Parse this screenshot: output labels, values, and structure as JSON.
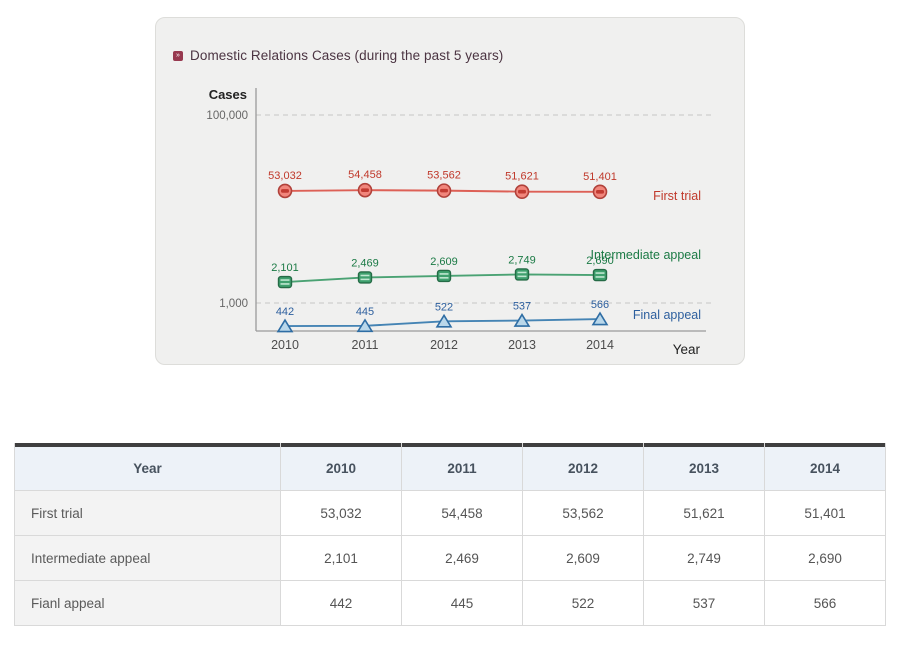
{
  "panel": {
    "title": "Domestic Relations Cases (during the past 5 years)",
    "bullet_icon": "»"
  },
  "chart_data": {
    "type": "line",
    "title": "Domestic Relations Cases (during the past 5 years)",
    "categories": [
      "2010",
      "2011",
      "2012",
      "2013",
      "2014"
    ],
    "series": [
      {
        "name": "First trial",
        "values": [
          53032,
          54458,
          53562,
          51621,
          51401
        ],
        "marker": "circle",
        "line_color": "#dd6056",
        "marker_fill": "#f1867c",
        "marker_stroke": "#b0413a",
        "label_color": "#c0392b"
      },
      {
        "name": "Intermediate appeal",
        "values": [
          2101,
          2469,
          2609,
          2749,
          2690
        ],
        "marker": "square",
        "line_color": "#4aa273",
        "marker_fill": "#3fa06e",
        "marker_stroke": "#256b46",
        "label_color": "#1b7a45"
      },
      {
        "name": "Final appeal",
        "values": [
          442,
          445,
          522,
          537,
          566
        ],
        "marker": "triangle",
        "line_color": "#4584b4",
        "marker_fill": "#b9d7ea",
        "marker_stroke": "#2e6da4",
        "label_color": "#2d5f9e"
      }
    ],
    "ylabel": "Cases",
    "xlabel": "Year",
    "yticks": [
      "100,000",
      "1,000"
    ],
    "scale": "log",
    "grid": "dashed-horizontal",
    "legend_position": "right-of-lines",
    "axis_color": "#9a9a9a",
    "grid_color": "#c6c6c6",
    "tick_text_color": "#666666",
    "xtick_text_color": "#4d4d4d",
    "axis_title_color": "#222222"
  },
  "table": {
    "header": [
      "Year",
      "2010",
      "2011",
      "2012",
      "2013",
      "2014"
    ],
    "rows": [
      {
        "label": "First trial",
        "values": [
          "53,032",
          "54,458",
          "53,562",
          "51,621",
          "51,401"
        ]
      },
      {
        "label": "Intermediate appeal",
        "values": [
          "2,101",
          "2,469",
          "2,609",
          "2,749",
          "2,690"
        ]
      },
      {
        "label": "Fianl appeal",
        "values": [
          "442",
          "445",
          "522",
          "537",
          "566"
        ]
      }
    ]
  }
}
